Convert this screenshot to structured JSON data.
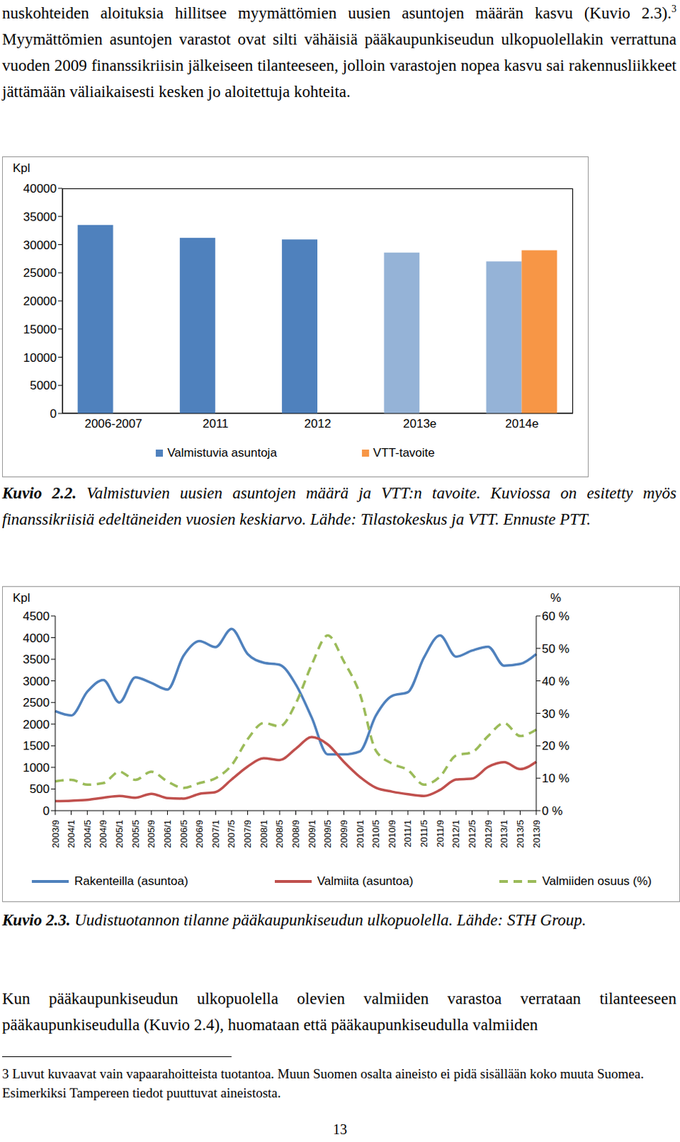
{
  "document": {
    "paragraph_top": {
      "text_before_mark": "nuskohteiden aloituksia hillitsee myymättömien uusien asuntojen määrän kasvu (Kuvio 2.3).",
      "footnote_mark": "3",
      "text_after_mark": " Myymättömien asuntojen varastot ovat silti vähäisiä pääkaupunkiseudun ulkopuolellakin verrattuna vuoden 2009 finanssikriisin jälkeiseen tilanteeseen, jolloin varastojen nopea kasvu sai rakennusliikkeet jättämään väliaikaisesti kesken jo aloitettuja kohteita."
    },
    "figures": [
      {
        "label": "Kuvio 2.2.",
        "caption": "Valmistuvien uusien asuntojen määrä ja VTT:n tavoite. Kuviossa on esitetty myös finanssikriisiä edeltäneiden vuosien keskiarvo. Lähde: Tilastokeskus ja VTT. Ennuste PTT."
      },
      {
        "label": "Kuvio 2.3.",
        "caption": "Uudistuotannon tilanne pääkaupunkiseudun ulkopuolella. Lähde: STH Group."
      }
    ],
    "paragraph_bottom": "Kun pääkaupunkiseudun ulkopuolella olevien valmiiden varastoa verrataan tilanteeseen pääkaupunkiseudulla (Kuvio 2.4), huomataan että pääkaupunkiseudulla valmiiden",
    "footnote": {
      "mark": "3",
      "text": "Luvut kuvaavat vain vapaarahoitteista tuotantoa. Muun Suomen osalta aineisto ei pidä sisällään koko muuta Suomea. Esimerkiksi Tampereen tiedot puuttuvat aineistosta."
    },
    "page_number": "13"
  },
  "chart_data": [
    {
      "type": "bar",
      "y_label": "Kpl",
      "categories": [
        "2006-2007",
        "2011",
        "2012",
        "2013e",
        "2014e"
      ],
      "series": [
        {
          "name": "Valmistuvia asuntoja",
          "color": "#4f81bd",
          "colors": [
            "#4f81bd",
            "#4f81bd",
            "#4f81bd",
            "#95b3d7",
            "#95b3d7"
          ],
          "values": [
            33500,
            31200,
            30900,
            28600,
            27000
          ]
        },
        {
          "name": "VTT-tavoite",
          "color": "#f79646",
          "values": [
            null,
            null,
            null,
            null,
            29000
          ]
        }
      ],
      "ylim": [
        0,
        40000
      ],
      "yticks": [
        0,
        5000,
        10000,
        15000,
        20000,
        25000,
        30000,
        35000,
        40000
      ],
      "grid": false,
      "legend": "bottom"
    },
    {
      "type": "line",
      "y_label": "Kpl",
      "y2_label": "%",
      "categories": [
        "2003/9",
        "2004/1",
        "2004/5",
        "2004/9",
        "2005/1",
        "2005/5",
        "2005/9",
        "2006/1",
        "2006/5",
        "2006/9",
        "2007/1",
        "2007/5",
        "2007/9",
        "2008/1",
        "2008/5",
        "2008/9",
        "2009/1",
        "2009/5",
        "2009/9",
        "2010/1",
        "2010/5",
        "2010/9",
        "2011/1",
        "2011/5",
        "2011/9",
        "2012/1",
        "2012/5",
        "2012/9",
        "2013/1",
        "2013/5",
        "2013/9"
      ],
      "series": [
        {
          "name": "Rakenteilla (asuntoa)",
          "color": "#4f81bd",
          "line_style": "solid",
          "values": [
            2300,
            2200,
            2750,
            3020,
            2500,
            3080,
            2950,
            2800,
            3580,
            3920,
            3780,
            4200,
            3620,
            3420,
            3370,
            2920,
            2150,
            1300,
            1300,
            1370,
            2200,
            2650,
            2740,
            3540,
            4050,
            3560,
            3700,
            3790,
            3350,
            3390,
            3620
          ]
        },
        {
          "name": "Valmiita (asuntoa)",
          "color": "#c0504d",
          "line_style": "solid",
          "values": [
            220,
            230,
            250,
            300,
            340,
            300,
            390,
            290,
            280,
            390,
            430,
            720,
            1020,
            1210,
            1170,
            1430,
            1700,
            1530,
            1130,
            780,
            530,
            440,
            380,
            340,
            480,
            720,
            740,
            1010,
            1120,
            960,
            1130
          ]
        },
        {
          "name": "Valmiiden osuus (%)",
          "color": "#9bbb59",
          "line_style": "dashed",
          "axis": "y2",
          "values": [
            9,
            9.5,
            8,
            8.5,
            12,
            9.5,
            12,
            9,
            7,
            8.5,
            10,
            14,
            22,
            27,
            26,
            33,
            45,
            54,
            46,
            36,
            18.5,
            14.5,
            12.5,
            8,
            10.5,
            17,
            18,
            23,
            27,
            23,
            25
          ]
        }
      ],
      "ylim": [
        0,
        4500
      ],
      "yticks": [
        0,
        500,
        1000,
        1500,
        2000,
        2500,
        3000,
        3500,
        4000,
        4500
      ],
      "y2lim": [
        0,
        60
      ],
      "y2ticks": [
        {
          "value": 0,
          "label": "0 %"
        },
        {
          "value": 10,
          "label": "10 %"
        },
        {
          "value": 20,
          "label": "20 %"
        },
        {
          "value": 30,
          "label": "30 %"
        },
        {
          "value": 40,
          "label": "40 %"
        },
        {
          "value": 50,
          "label": "50 %"
        },
        {
          "value": 60,
          "label": "60 %"
        }
      ],
      "grid": false,
      "legend": "bottom"
    }
  ]
}
